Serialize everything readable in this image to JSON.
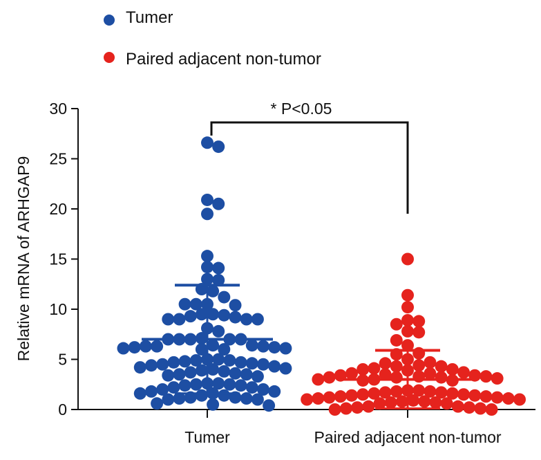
{
  "chart_data": {
    "type": "scatter",
    "title": "",
    "xlabel": "",
    "ylabel": "Relative mRNA of ARHGAP9",
    "ylim": [
      0,
      30
    ],
    "yticks": [
      "0",
      "5",
      "10",
      "15",
      "20",
      "25",
      "30"
    ],
    "categories": [
      "Tumer",
      "Paired adjacent non-tumor"
    ],
    "legend": {
      "placement": "top-left",
      "entries": [
        "Tumer",
        "Paired adjacent non-tumor"
      ]
    },
    "grid": false,
    "annotation": "* P<0.05",
    "series": [
      {
        "name": "Tumer",
        "color": "#1d4ea3",
        "mean": 7.0,
        "sd_low": 1.6,
        "sd_high": 12.4,
        "values": [
          26.6,
          26.2,
          20.9,
          20.5,
          19.5,
          15.3,
          14.1,
          14.2,
          12.9,
          13.0,
          11.2,
          11.8,
          12.0,
          10.5,
          10.5,
          10.5,
          10.4,
          9.5,
          9.4,
          9.2,
          9.0,
          9.0,
          9.0,
          9.0,
          9.3,
          9.5,
          8.1,
          7.8,
          7.1,
          7.0,
          7.0,
          7.0,
          7.0,
          7.0,
          6.4,
          6.3,
          6.3,
          6.2,
          6.1,
          6.0,
          6.0,
          6.1,
          6.2,
          6.3,
          6.4,
          5.0,
          4.9,
          4.8,
          4.7,
          4.6,
          4.5,
          4.4,
          4.2,
          4.0,
          3.8,
          3.6,
          3.5,
          3.4,
          3.3,
          3.5,
          3.7,
          3.9,
          4.1,
          4.3,
          4.5,
          4.7,
          4.9,
          5.0,
          2.6,
          2.5,
          2.4,
          2.2,
          2.0,
          1.8,
          1.6,
          1.4,
          1.2,
          1.1,
          1.0,
          1.0,
          1.1,
          1.2,
          1.4,
          1.6,
          1.8,
          2.0,
          2.2,
          2.4,
          2.5,
          2.6,
          0.6,
          0.5,
          0.4
        ]
      },
      {
        "name": "Paired adjacent non-tumor",
        "color": "#e5231d",
        "mean": 3.0,
        "sd_low": 0.1,
        "sd_high": 5.9,
        "values": [
          15.0,
          11.4,
          10.2,
          8.9,
          8.5,
          8.8,
          7.8,
          7.7,
          6.9,
          6.4,
          5.6,
          5.5,
          5.0,
          4.7,
          4.6,
          4.4,
          4.3,
          4.3,
          4.1,
          4.0,
          4.0,
          3.9,
          3.7,
          3.6,
          3.5,
          3.4,
          3.3,
          3.3,
          3.2,
          3.2,
          3.1,
          3.0,
          2.9,
          2.9,
          3.0,
          3.2,
          3.4,
          3.6,
          1.9,
          1.8,
          1.7,
          1.6,
          1.5,
          1.4,
          1.3,
          1.2,
          1.1,
          1.0,
          0.9,
          0.8,
          0.7,
          0.6,
          0.6,
          0.7,
          0.8,
          0.9,
          1.0,
          1.1,
          1.2,
          1.3,
          1.4,
          1.5,
          1.6,
          1.7,
          1.8,
          1.9,
          0.3,
          0.2,
          0.1,
          0.1,
          0.0,
          0.0,
          0.2,
          0.3
        ]
      }
    ]
  }
}
